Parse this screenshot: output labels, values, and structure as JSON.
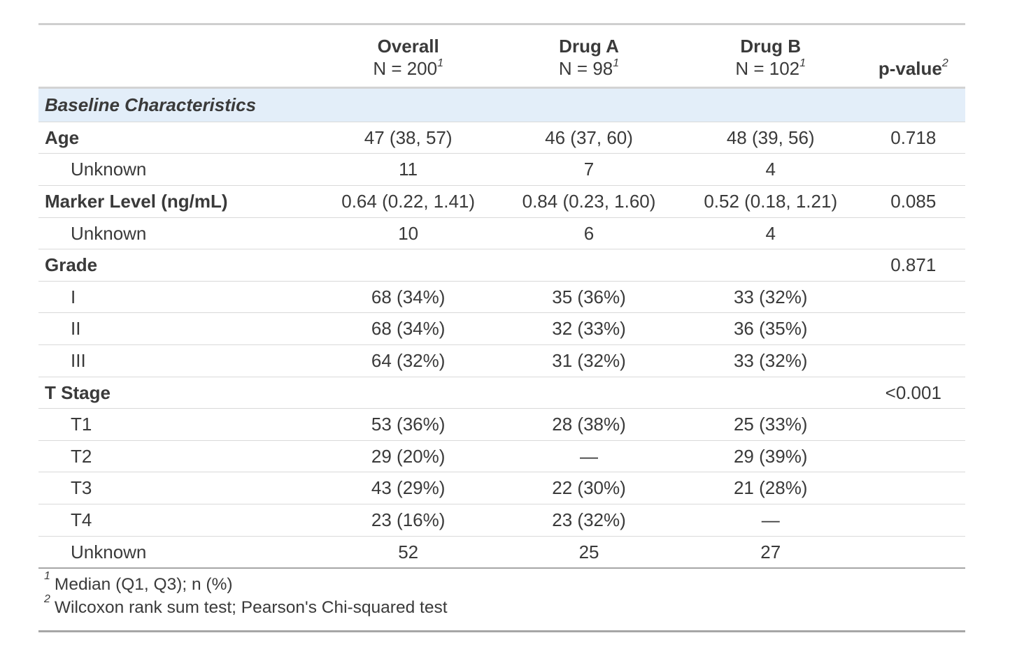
{
  "table": {
    "columns": [
      {
        "label": "",
        "sublabel": "",
        "sup": ""
      },
      {
        "label": "Overall",
        "sublabel": "N = 200",
        "sup": "1"
      },
      {
        "label": "Drug A",
        "sublabel": "N = 98",
        "sup": "1"
      },
      {
        "label": "Drug B",
        "sublabel": "N = 102",
        "sup": "1"
      },
      {
        "label": "p-value",
        "sublabel": "",
        "sup": "2"
      }
    ],
    "group_header": "Baseline Characteristics",
    "rows": [
      {
        "label": "Age",
        "bold": true,
        "indent": false,
        "overall": "47 (38, 57)",
        "drug_a": "46 (37, 60)",
        "drug_b": "48 (39, 56)",
        "p_value": "0.718"
      },
      {
        "label": "Unknown",
        "bold": false,
        "indent": true,
        "overall": "11",
        "drug_a": "7",
        "drug_b": "4",
        "p_value": ""
      },
      {
        "label": "Marker Level (ng/mL)",
        "bold": true,
        "indent": false,
        "overall": "0.64 (0.22, 1.41)",
        "drug_a": "0.84 (0.23, 1.60)",
        "drug_b": "0.52 (0.18, 1.21)",
        "p_value": "0.085"
      },
      {
        "label": "Unknown",
        "bold": false,
        "indent": true,
        "overall": "10",
        "drug_a": "6",
        "drug_b": "4",
        "p_value": ""
      },
      {
        "label": "Grade",
        "bold": true,
        "indent": false,
        "overall": "",
        "drug_a": "",
        "drug_b": "",
        "p_value": "0.871"
      },
      {
        "label": "I",
        "bold": false,
        "indent": true,
        "overall": "68 (34%)",
        "drug_a": "35 (36%)",
        "drug_b": "33 (32%)",
        "p_value": ""
      },
      {
        "label": "II",
        "bold": false,
        "indent": true,
        "overall": "68 (34%)",
        "drug_a": "32 (33%)",
        "drug_b": "36 (35%)",
        "p_value": ""
      },
      {
        "label": "III",
        "bold": false,
        "indent": true,
        "overall": "64 (32%)",
        "drug_a": "31 (32%)",
        "drug_b": "33 (32%)",
        "p_value": ""
      },
      {
        "label": "T Stage",
        "bold": true,
        "indent": false,
        "overall": "",
        "drug_a": "",
        "drug_b": "",
        "p_value": "<0.001"
      },
      {
        "label": "T1",
        "bold": false,
        "indent": true,
        "overall": "53 (36%)",
        "drug_a": "28 (38%)",
        "drug_b": "25 (33%)",
        "p_value": ""
      },
      {
        "label": "T2",
        "bold": false,
        "indent": true,
        "overall": "29 (20%)",
        "drug_a": "—",
        "drug_b": "29 (39%)",
        "p_value": ""
      },
      {
        "label": "T3",
        "bold": false,
        "indent": true,
        "overall": "43 (29%)",
        "drug_a": "22 (30%)",
        "drug_b": "21 (28%)",
        "p_value": ""
      },
      {
        "label": "T4",
        "bold": false,
        "indent": true,
        "overall": "23 (16%)",
        "drug_a": "23 (32%)",
        "drug_b": "—",
        "p_value": ""
      },
      {
        "label": "Unknown",
        "bold": false,
        "indent": true,
        "overall": "52",
        "drug_a": "25",
        "drug_b": "27",
        "p_value": ""
      }
    ],
    "footnotes": [
      {
        "marker": "1",
        "text": "Median (Q1, Q3); n (%)"
      },
      {
        "marker": "2",
        "text": "Wilcoxon rank sum test; Pearson's Chi-squared test"
      }
    ],
    "colors": {
      "group_header_bg": "#e3eef9",
      "text": "#3a3a3a",
      "row_border": "#d9d9d9",
      "header_border": "#d3d3d3",
      "outer_border_top": "#cfcfcf",
      "outer_border_bottom": "#a6a6a6"
    }
  }
}
